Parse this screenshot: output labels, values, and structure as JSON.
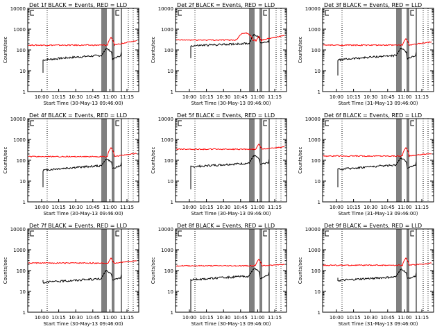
{
  "chart_data": [
    {
      "type": "line",
      "title": "Det 1f BLACK = Events, RED = LLD",
      "xlabel": "Start Time (30-May-13 09:46:00)",
      "ylabel": "Counts/sec",
      "yscale": "log",
      "ylim": [
        1,
        10000
      ],
      "y_ticks": [
        "1",
        "10",
        "100",
        "1000",
        "10000"
      ],
      "x_ticks": [
        "10:00",
        "10:15",
        "10:30",
        "10:45",
        "11:00",
        "11:15"
      ],
      "series": [
        {
          "name": "Events",
          "color": "#000000",
          "base": 55,
          "start": 8,
          "dip": 20,
          "slope": 0.4
        },
        {
          "name": "LLD",
          "color": "#ff0000",
          "base": 170,
          "bump": 400,
          "tail": 290
        }
      ]
    },
    {
      "type": "line",
      "title": "Det 2f BLACK = Events, RED = LLD",
      "xlabel": "Start Time (30-May-13 09:46:00)",
      "ylabel": "Counts/sec",
      "yscale": "log",
      "ylim": [
        1,
        10000
      ],
      "y_ticks": [
        "1",
        "10",
        "100",
        "1000",
        "10000"
      ],
      "x_ticks": [
        "10:00",
        "10:15",
        "10:30",
        "10:45",
        "11:00",
        "11:15"
      ],
      "series": [
        {
          "name": "Events",
          "color": "#000000",
          "base": 260,
          "start": 40,
          "dip": 180,
          "slope": 0.2
        },
        {
          "name": "LLD",
          "color": "#ff0000",
          "base": 300,
          "bump": 450,
          "tail": 500,
          "hump": 700
        }
      ]
    },
    {
      "type": "line",
      "title": "Det 3f BLACK = Events, RED = LLD",
      "xlabel": "Start Time (31-May-13 09:46:00)",
      "ylabel": "Counts/sec",
      "yscale": "log",
      "ylim": [
        1,
        10000
      ],
      "y_ticks": [
        "1",
        "10",
        "100",
        "1000",
        "10000"
      ],
      "x_ticks": [
        "10:00",
        "10:15",
        "10:30",
        "10:45",
        "11:00",
        "11:15"
      ],
      "series": [
        {
          "name": "Events",
          "color": "#000000",
          "base": 55,
          "start": 6,
          "dip": 25,
          "slope": 0.4
        },
        {
          "name": "LLD",
          "color": "#ff0000",
          "base": 170,
          "bump": 350,
          "tail": 250
        }
      ]
    },
    {
      "type": "line",
      "title": "Det 4f BLACK = Events, RED = LLD",
      "xlabel": "Start Time (30-May-13 09:46:00)",
      "ylabel": "Counts/sec",
      "yscale": "log",
      "ylim": [
        1,
        10000
      ],
      "y_ticks": [
        "1",
        "10",
        "100",
        "1000",
        "10000"
      ],
      "x_ticks": [
        "10:00",
        "10:15",
        "10:30",
        "10:45",
        "11:00",
        "11:15"
      ],
      "series": [
        {
          "name": "Events",
          "color": "#000000",
          "base": 55,
          "start": 5,
          "dip": 30,
          "slope": 0.4
        },
        {
          "name": "LLD",
          "color": "#ff0000",
          "base": 150,
          "bump": 400,
          "tail": 220
        }
      ]
    },
    {
      "type": "line",
      "title": "Det 5f BLACK = Events, RED = LLD",
      "xlabel": "Start Time (30-May-13 09:46:00)",
      "ylabel": "Counts/sec",
      "yscale": "log",
      "ylim": [
        1,
        10000
      ],
      "y_ticks": [
        "1",
        "10",
        "100",
        "1000",
        "10000"
      ],
      "x_ticks": [
        "10:00",
        "10:15",
        "10:30",
        "10:45",
        "11:00",
        "11:15"
      ],
      "series": [
        {
          "name": "Events",
          "color": "#000000",
          "base": 80,
          "start": 4,
          "dip": 50,
          "slope": 0.3
        },
        {
          "name": "LLD",
          "color": "#ff0000",
          "base": 340,
          "bump": 600,
          "tail": 450
        }
      ]
    },
    {
      "type": "line",
      "title": "Det 6f BLACK = Events, RED = LLD",
      "xlabel": "Start Time (31-May-13 09:46:00)",
      "ylabel": "Counts/sec",
      "yscale": "log",
      "ylim": [
        1,
        10000
      ],
      "y_ticks": [
        "1",
        "10",
        "100",
        "1000",
        "10000"
      ],
      "x_ticks": [
        "10:00",
        "10:15",
        "10:30",
        "10:45",
        "11:00",
        "11:15"
      ],
      "series": [
        {
          "name": "Events",
          "color": "#000000",
          "base": 60,
          "start": 5,
          "dip": 30,
          "slope": 0.4
        },
        {
          "name": "LLD",
          "color": "#ff0000",
          "base": 160,
          "bump": 400,
          "tail": 220
        }
      ]
    },
    {
      "type": "line",
      "title": "Det 7f BLACK = Events, RED = LLD",
      "xlabel": "Start Time (30-May-13 09:46:00)",
      "ylabel": "Counts/sec",
      "yscale": "log",
      "ylim": [
        1,
        10000
      ],
      "y_ticks": [
        "1",
        "10",
        "100",
        "1000",
        "10000"
      ],
      "x_ticks": [
        "10:00",
        "10:15",
        "10:30",
        "10:45",
        "11:00",
        "11:15"
      ],
      "series": [
        {
          "name": "Events",
          "color": "#000000",
          "base": 45,
          "start": 35,
          "dip": 30,
          "slope": 0.3
        },
        {
          "name": "LLD",
          "color": "#ff0000",
          "base": 230,
          "bump": 400,
          "tail": 300
        }
      ]
    },
    {
      "type": "line",
      "title": "Det 8f BLACK = Events, RED = LLD",
      "xlabel": "Start Time (30-May-13 09:46:00)",
      "ylabel": "Counts/sec",
      "yscale": "log",
      "ylim": [
        1,
        10000
      ],
      "y_ticks": [
        "1",
        "10",
        "100",
        "1000",
        "10000"
      ],
      "x_ticks": [
        "10:00",
        "10:15",
        "10:30",
        "10:45",
        "11:00",
        "11:15"
      ],
      "series": [
        {
          "name": "Events",
          "color": "#000000",
          "base": 60,
          "start": 1,
          "dip": 30,
          "slope": 0.3
        },
        {
          "name": "LLD",
          "color": "#ff0000",
          "base": 170,
          "bump": 350,
          "tail": 200
        }
      ]
    },
    {
      "type": "line",
      "title": "Det 9f BLACK = Events, RED = LLD",
      "xlabel": "Start Time (31-May-13 09:46:00)",
      "ylabel": "Counts/sec",
      "yscale": "log",
      "ylim": [
        1,
        10000
      ],
      "y_ticks": [
        "1",
        "10",
        "100",
        "1000",
        "10000"
      ],
      "x_ticks": [
        "10:00",
        "10:15",
        "10:30",
        "10:45",
        "11:00",
        "11:15"
      ],
      "series": [
        {
          "name": "Events",
          "color": "#000000",
          "base": 55,
          "start": 45,
          "dip": 30,
          "slope": 0.3
        },
        {
          "name": "LLD",
          "color": "#ff0000",
          "base": 180,
          "bump": 400,
          "tail": 230
        }
      ]
    }
  ]
}
